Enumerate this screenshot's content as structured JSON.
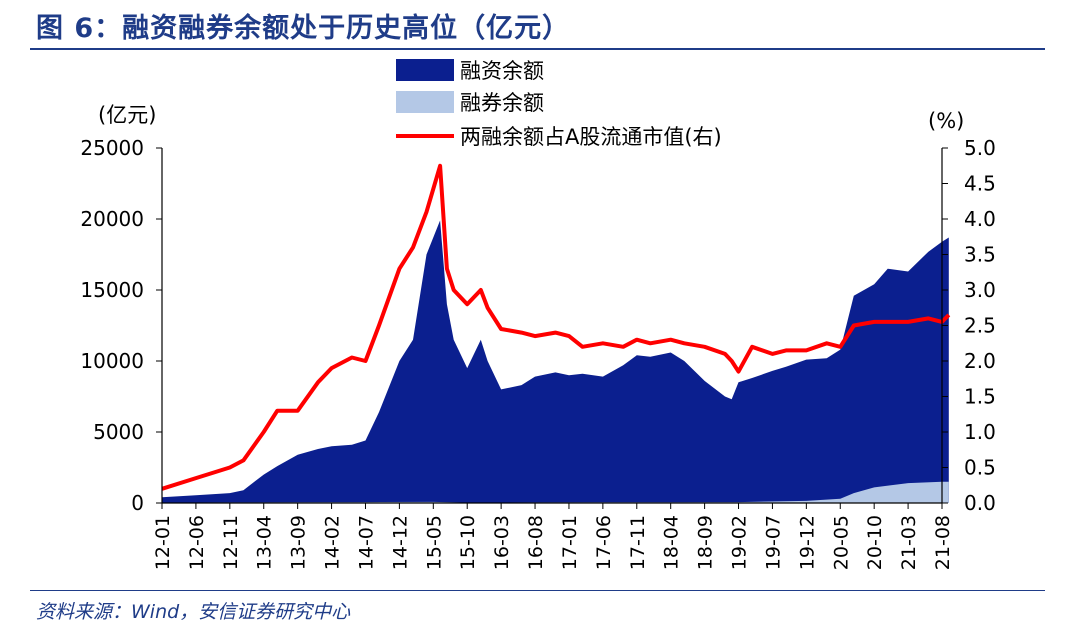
{
  "figure": {
    "title": "图 6：融资融券余额处于历史高位（亿元）",
    "source": "资料来源：Wind，安信证券研究中心"
  },
  "chart_data": {
    "type": "area",
    "xlabel": "",
    "left_unit": "(亿元)",
    "right_unit": "(%)",
    "ylim_left": [
      0,
      25000
    ],
    "ylim_right": [
      0,
      5.0
    ],
    "left_ticks": [
      "0",
      "5000",
      "10000",
      "15000",
      "20000",
      "25000"
    ],
    "right_ticks": [
      "0.0",
      "0.5",
      "1.0",
      "1.5",
      "2.0",
      "2.5",
      "3.0",
      "3.5",
      "4.0",
      "4.5",
      "5.0"
    ],
    "x_tick_labels": [
      "12-01",
      "12-06",
      "12-11",
      "13-04",
      "13-09",
      "14-02",
      "14-07",
      "14-12",
      "15-05",
      "15-10",
      "16-03",
      "16-08",
      "17-01",
      "17-06",
      "17-11",
      "18-04",
      "18-09",
      "19-02",
      "19-07",
      "19-12",
      "20-05",
      "20-10",
      "21-03",
      "21-08"
    ],
    "legend_placement": "top-center",
    "grid": false,
    "colors": {
      "financing": "#0B1F8F",
      "securities": "#B4C8E6",
      "ratio": "#FF0000"
    },
    "series": [
      {
        "name": "融资余额",
        "kind": "area",
        "axis": "left",
        "x": [
          "12-01",
          "12-06",
          "12-11",
          "13-01",
          "13-04",
          "13-06",
          "13-09",
          "13-12",
          "14-02",
          "14-05",
          "14-07",
          "14-09",
          "14-12",
          "15-02",
          "15-04",
          "15-06",
          "15-07",
          "15-08",
          "15-10",
          "15-12",
          "16-01",
          "16-03",
          "16-06",
          "16-08",
          "16-11",
          "17-01",
          "17-03",
          "17-06",
          "17-09",
          "17-11",
          "18-01",
          "18-04",
          "18-06",
          "18-09",
          "18-12",
          "19-01",
          "19-02",
          "19-04",
          "19-07",
          "19-09",
          "19-12",
          "20-03",
          "20-05",
          "20-07",
          "20-10",
          "20-12",
          "21-03",
          "21-06",
          "21-08",
          "21-09"
        ],
        "values": [
          400,
          550,
          700,
          900,
          2000,
          2600,
          3400,
          3800,
          4000,
          4100,
          4400,
          6400,
          10000,
          11500,
          17500,
          19900,
          14000,
          11500,
          9500,
          11500,
          10000,
          8000,
          8300,
          8900,
          9200,
          9000,
          9100,
          8900,
          9700,
          10400,
          10300,
          10600,
          10000,
          8600,
          7500,
          7300,
          8500,
          8800,
          9300,
          9600,
          10100,
          10200,
          10800,
          14600,
          15400,
          16500,
          16300,
          17700,
          18400,
          18700
        ]
      },
      {
        "name": "融券余额",
        "kind": "area",
        "axis": "left",
        "x": [
          "12-01",
          "12-11",
          "13-09",
          "14-07",
          "15-05",
          "15-10",
          "16-08",
          "17-06",
          "18-04",
          "19-02",
          "19-12",
          "20-05",
          "20-07",
          "20-10",
          "21-03",
          "21-08",
          "21-09"
        ],
        "values": [
          30,
          40,
          50,
          60,
          80,
          30,
          40,
          50,
          50,
          60,
          150,
          300,
          700,
          1100,
          1400,
          1500,
          1500
        ]
      },
      {
        "name": "两融余额占A股流通市值(右)",
        "kind": "line",
        "axis": "right",
        "x": [
          "12-01",
          "12-06",
          "12-11",
          "13-01",
          "13-04",
          "13-06",
          "13-09",
          "13-12",
          "14-02",
          "14-05",
          "14-07",
          "14-09",
          "14-12",
          "15-02",
          "15-04",
          "15-06",
          "15-07",
          "15-08",
          "15-10",
          "15-12",
          "16-01",
          "16-03",
          "16-06",
          "16-08",
          "16-11",
          "17-01",
          "17-03",
          "17-06",
          "17-09",
          "17-11",
          "18-01",
          "18-04",
          "18-06",
          "18-09",
          "18-12",
          "19-01",
          "19-02",
          "19-04",
          "19-07",
          "19-09",
          "19-12",
          "20-03",
          "20-05",
          "20-07",
          "20-10",
          "20-12",
          "21-03",
          "21-06",
          "21-08",
          "21-09"
        ],
        "values": [
          0.2,
          0.35,
          0.5,
          0.6,
          1.0,
          1.3,
          1.3,
          1.7,
          1.9,
          2.05,
          2.0,
          2.5,
          3.3,
          3.6,
          4.1,
          4.75,
          3.3,
          3.0,
          2.8,
          3.0,
          2.75,
          2.45,
          2.4,
          2.35,
          2.4,
          2.35,
          2.2,
          2.25,
          2.2,
          2.3,
          2.25,
          2.3,
          2.25,
          2.2,
          2.1,
          2.0,
          1.85,
          2.2,
          2.1,
          2.15,
          2.15,
          2.25,
          2.2,
          2.5,
          2.55,
          2.55,
          2.55,
          2.6,
          2.55,
          2.65
        ]
      }
    ]
  }
}
